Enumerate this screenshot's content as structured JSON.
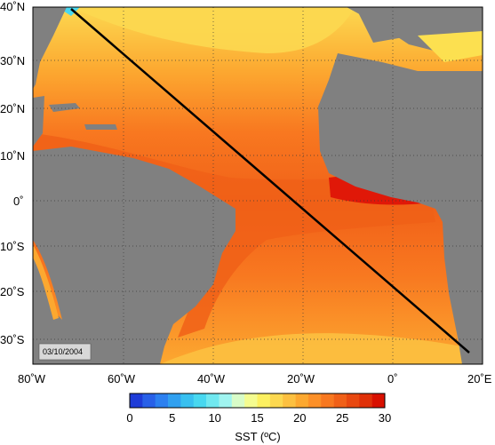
{
  "map": {
    "date_stamp": "03/10/2004",
    "lat_labels": [
      "40˚N",
      "30˚N",
      "20˚N",
      "10˚N",
      "0˚",
      "10˚S",
      "20˚S",
      "30˚S"
    ],
    "lon_labels": [
      "80˚W",
      "60˚W",
      "40˚W",
      "20˚W",
      "0˚",
      "20˚E"
    ],
    "colors": {
      "land": "#808080",
      "shelf": "#a8a8a8",
      "transect": "#000000",
      "grid": "#3a3a3a"
    }
  },
  "colorbar": {
    "title": "SST (ºC)",
    "tick_labels": [
      "0",
      "5",
      "10",
      "15",
      "20",
      "25",
      "30"
    ],
    "colors": [
      "#1e3cd8",
      "#2860e8",
      "#2c80f0",
      "#30a0f0",
      "#38c0f0",
      "#48d8f0",
      "#70e8f0",
      "#a0f4f0",
      "#d8fcc8",
      "#f4fc90",
      "#fcf060",
      "#fcd850",
      "#fcc040",
      "#fca830",
      "#fc9028",
      "#f87820",
      "#f06018",
      "#e84810",
      "#e03008",
      "#d81000"
    ]
  }
}
